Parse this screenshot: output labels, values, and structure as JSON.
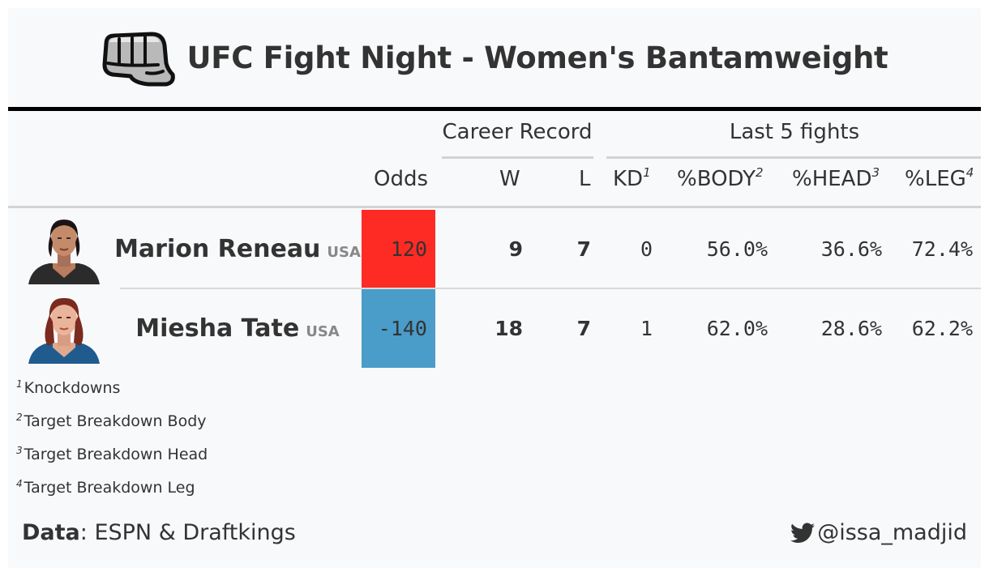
{
  "title": "UFC Fight Night - Women's Bantamweight",
  "title_icon": "fist-icon",
  "spanners": {
    "career": "Career Record",
    "last5": "Last 5 fights"
  },
  "columns": {
    "odds": "Odds",
    "w": "W",
    "l": "L",
    "kd": "KD",
    "kd_note": "1",
    "body": "%BODY",
    "body_note": "2",
    "head": "%HEAD",
    "head_note": "3",
    "leg": "%LEG",
    "leg_note": "4"
  },
  "rows": [
    {
      "name": "Marion Reneau",
      "country": "USA",
      "odds": "120",
      "odds_color": "#fe2a24",
      "w": "9",
      "l": "7",
      "kd": "0",
      "body": "56.0%",
      "head": "36.6%",
      "leg": "72.4%"
    },
    {
      "name": "Miesha Tate",
      "country": "USA",
      "odds": "-140",
      "odds_color": "#4a9cc9",
      "w": "18",
      "l": "7",
      "kd": "1",
      "body": "62.0%",
      "head": "28.6%",
      "leg": "62.2%"
    }
  ],
  "footnotes": [
    {
      "mark": "1",
      "text": "Knockdowns"
    },
    {
      "mark": "2",
      "text": "Target Breakdown Body"
    },
    {
      "mark": "3",
      "text": "Target Breakdown Head"
    },
    {
      "mark": "4",
      "text": "Target Breakdown Leg"
    }
  ],
  "source": {
    "label": "Data",
    "text": ": ESPN & Draftkings"
  },
  "handle": {
    "icon": "twitter-bird-icon",
    "text": "@issa_madjid"
  }
}
